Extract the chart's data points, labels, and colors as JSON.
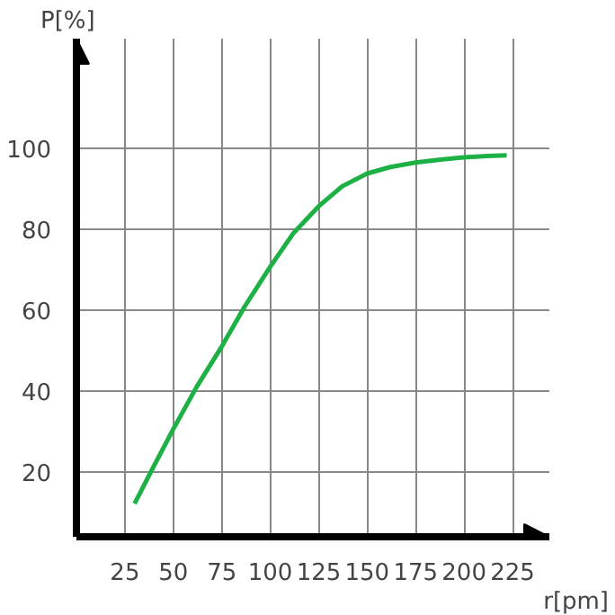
{
  "chart_data": {
    "type": "line",
    "xlabel": "r[pm]",
    "ylabel": "P[%]",
    "x": [
      30,
      40,
      50,
      62,
      75,
      87,
      100,
      112,
      125,
      137,
      150,
      162,
      175,
      187,
      200,
      212,
      222
    ],
    "series": [
      {
        "color": "#1db045",
        "values": [
          12.2,
          21.5,
          30.6,
          41,
          51,
          61,
          70.7,
          79,
          85.6,
          90.5,
          93.7,
          95.3,
          96.4,
          97.1,
          97.7,
          98,
          98.2
        ]
      }
    ],
    "xlim": [
      0,
      244
    ],
    "ylim": [
      4,
      127
    ],
    "xticks": [
      25,
      50,
      75,
      100,
      125,
      150,
      175,
      200,
      225
    ],
    "yticks": [
      20,
      40,
      60,
      80,
      100
    ],
    "grid": true,
    "marker": "none",
    "line_style": "solid"
  }
}
